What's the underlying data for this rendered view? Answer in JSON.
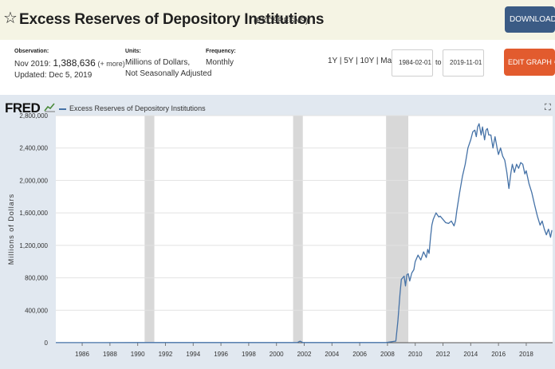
{
  "header": {
    "star_icon": "star-outline-icon",
    "title": "Excess Reserves of Depository Institutions",
    "series_id": "(EXCSRESNS)",
    "download_label": "DOWNLOAD",
    "download_icon": "download-icon"
  },
  "meta": {
    "observation_label": "Observation:",
    "observation_period": "Nov 2019:",
    "observation_value": "1,388,636",
    "observation_more": "(+ more)",
    "updated": "Updated: Dec 5, 2019",
    "units_label": "Units:",
    "units_line1": "Millions of Dollars,",
    "units_line2": "Not Seasonally Adjusted",
    "frequency_label": "Frequency:",
    "frequency_value": "Monthly"
  },
  "controls": {
    "range_1y": "1Y",
    "range_5y": "5Y",
    "range_10y": "10Y",
    "range_max": "Max",
    "sep": "|",
    "date_from": "1984-02-01",
    "to_label": "to",
    "date_to": "2019-11-01",
    "edit_label": "EDIT GRAPH",
    "edit_icon": "gear-icon"
  },
  "chart_header": {
    "logo": "FRED",
    "legend": "Excess Reserves of Depository Institutions",
    "fullscreen_icon": "fullscreen-icon"
  },
  "colors": {
    "line": "#4572a7",
    "recession": "#d8d8d8",
    "plot_bg": "#ffffff",
    "gridline": "#e2e2e2"
  },
  "chart_data": {
    "type": "line",
    "title": "Excess Reserves of Depository Institutions",
    "xlabel": "",
    "ylabel": "Millions of Dollars",
    "xlim": [
      1984.1,
      2019.9
    ],
    "ylim": [
      0,
      2800000
    ],
    "yticks": [
      0,
      400000,
      800000,
      1200000,
      1600000,
      2000000,
      2400000,
      2800000
    ],
    "ytick_labels": [
      "0",
      "400,000",
      "800,000",
      "1,200,000",
      "1,600,000",
      "2,000,000",
      "2,400,000",
      "2,800,000"
    ],
    "xticks": [
      1986,
      1988,
      1990,
      1992,
      1994,
      1996,
      1998,
      2000,
      2002,
      2004,
      2006,
      2008,
      2010,
      2012,
      2014,
      2016,
      2018
    ],
    "xtick_labels": [
      "1986",
      "1988",
      "1990",
      "1992",
      "1994",
      "1996",
      "1998",
      "2000",
      "2002",
      "2004",
      "2006",
      "2008",
      "2010",
      "2012",
      "2014",
      "2016",
      "2018"
    ],
    "grid": true,
    "recessions": [
      [
        1990.5,
        1991.2
      ],
      [
        2001.2,
        2001.9
      ],
      [
        2007.9,
        2009.5
      ]
    ],
    "series": [
      {
        "name": "Excess Reserves of Depository Institutions",
        "x": [
          1984.1,
          1990.0,
          2001.5,
          2001.7,
          2001.9,
          2007.9,
          2008.6,
          2008.75,
          2008.9,
          2009.0,
          2009.2,
          2009.3,
          2009.4,
          2009.5,
          2009.6,
          2009.75,
          2009.9,
          2010.0,
          2010.2,
          2010.4,
          2010.6,
          2010.8,
          2010.9,
          2011.0,
          2011.1,
          2011.2,
          2011.3,
          2011.5,
          2011.7,
          2011.8,
          2012.0,
          2012.2,
          2012.4,
          2012.6,
          2012.8,
          2012.9,
          2013.0,
          2013.2,
          2013.4,
          2013.6,
          2013.8,
          2014.0,
          2014.15,
          2014.3,
          2014.4,
          2014.5,
          2014.6,
          2014.75,
          2014.85,
          2015.0,
          2015.1,
          2015.2,
          2015.3,
          2015.45,
          2015.6,
          2015.75,
          2015.9,
          2016.0,
          2016.15,
          2016.3,
          2016.45,
          2016.6,
          2016.75,
          2016.9,
          2017.0,
          2017.15,
          2017.3,
          2017.45,
          2017.6,
          2017.75,
          2017.9,
          2018.0,
          2018.2,
          2018.4,
          2018.6,
          2018.8,
          2019.0,
          2019.15,
          2019.3,
          2019.45,
          2019.6,
          2019.75,
          2019.85
        ],
        "y": [
          1000,
          1500,
          1500,
          19000,
          2000,
          2000,
          20000,
          270000,
          600000,
          780000,
          820000,
          700000,
          840000,
          850000,
          760000,
          860000,
          900000,
          1000000,
          1080000,
          1020000,
          1120000,
          1050000,
          1150000,
          1100000,
          1300000,
          1450000,
          1520000,
          1600000,
          1550000,
          1560000,
          1520000,
          1480000,
          1470000,
          1500000,
          1440000,
          1500000,
          1630000,
          1850000,
          2050000,
          2200000,
          2400000,
          2500000,
          2600000,
          2620000,
          2540000,
          2660000,
          2700000,
          2560000,
          2660000,
          2500000,
          2620000,
          2640000,
          2560000,
          2560000,
          2400000,
          2540000,
          2400000,
          2320000,
          2400000,
          2300000,
          2250000,
          2100000,
          1900000,
          2100000,
          2200000,
          2100000,
          2200000,
          2150000,
          2220000,
          2200000,
          2080000,
          2120000,
          1960000,
          1850000,
          1700000,
          1560000,
          1450000,
          1500000,
          1400000,
          1330000,
          1400000,
          1300000,
          1388636
        ]
      }
    ]
  }
}
